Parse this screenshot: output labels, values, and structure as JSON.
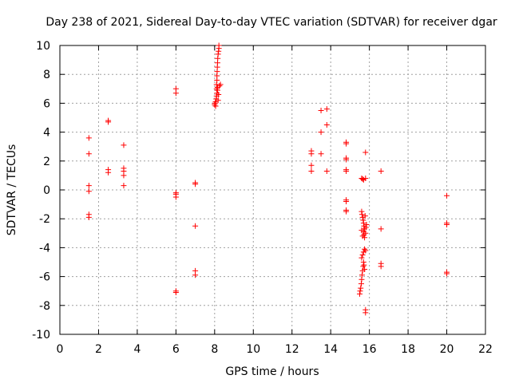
{
  "chart_data": {
    "type": "scatter",
    "title": "Day 238 of 2021, Sidereal Day-to-day VTEC variation (SDTVAR) for receiver dgar",
    "xlabel": "GPS time / hours",
    "ylabel": "SDTVAR / TECUs",
    "xlim": [
      0,
      22
    ],
    "ylim": [
      -10,
      10
    ],
    "xticks": [
      0,
      2,
      4,
      6,
      8,
      10,
      12,
      14,
      16,
      18,
      20,
      22
    ],
    "yticks": [
      -10,
      -8,
      -6,
      -4,
      -2,
      0,
      2,
      4,
      6,
      8,
      10
    ],
    "grid": true,
    "marker": "+",
    "color": "#ff0000",
    "series": [
      {
        "name": "SDTVAR",
        "points": [
          [
            1.5,
            3.6
          ],
          [
            1.5,
            2.5
          ],
          [
            1.5,
            0.3
          ],
          [
            1.5,
            -0.1
          ],
          [
            1.5,
            -1.7
          ],
          [
            1.5,
            -1.9
          ],
          [
            2.5,
            4.8
          ],
          [
            2.5,
            4.7
          ],
          [
            2.5,
            1.4
          ],
          [
            2.5,
            1.2
          ],
          [
            3.3,
            3.1
          ],
          [
            3.3,
            1.5
          ],
          [
            3.3,
            1.3
          ],
          [
            3.3,
            1.0
          ],
          [
            3.3,
            0.3
          ],
          [
            6.0,
            7.0
          ],
          [
            6.0,
            6.7
          ],
          [
            6.0,
            -0.2
          ],
          [
            6.0,
            -0.3
          ],
          [
            6.0,
            -0.5
          ],
          [
            6.0,
            -7.0
          ],
          [
            6.0,
            -7.1
          ],
          [
            7.0,
            0.5
          ],
          [
            7.0,
            0.4
          ],
          [
            7.0,
            -2.5
          ],
          [
            7.0,
            -5.6
          ],
          [
            7.0,
            -5.9
          ],
          [
            8.0,
            5.9
          ],
          [
            8.02,
            6.0
          ],
          [
            8.05,
            6.1
          ],
          [
            8.08,
            6.3
          ],
          [
            8.1,
            6.5
          ],
          [
            8.12,
            6.7
          ],
          [
            8.15,
            6.9
          ],
          [
            8.1,
            7.0
          ],
          [
            8.1,
            7.3
          ],
          [
            8.12,
            7.6
          ],
          [
            8.12,
            7.9
          ],
          [
            8.13,
            8.2
          ],
          [
            8.14,
            8.5
          ],
          [
            8.15,
            8.8
          ],
          [
            8.16,
            9.1
          ],
          [
            8.18,
            9.4
          ],
          [
            8.2,
            9.6
          ],
          [
            8.22,
            9.8
          ],
          [
            8.22,
            10.0
          ],
          [
            8.25,
            7.2
          ],
          [
            8.3,
            7.3
          ],
          [
            8.18,
            6.2
          ],
          [
            8.2,
            6.6
          ],
          [
            8.05,
            5.8
          ],
          [
            8.15,
            7.1
          ],
          [
            13.0,
            2.7
          ],
          [
            13.0,
            2.5
          ],
          [
            13.0,
            1.7
          ],
          [
            13.0,
            1.3
          ],
          [
            13.5,
            5.5
          ],
          [
            13.5,
            4.0
          ],
          [
            13.5,
            2.5
          ],
          [
            13.8,
            5.6
          ],
          [
            13.8,
            4.5
          ],
          [
            13.8,
            1.3
          ],
          [
            14.8,
            3.3
          ],
          [
            14.8,
            3.2
          ],
          [
            14.8,
            2.2
          ],
          [
            14.8,
            2.1
          ],
          [
            14.8,
            1.4
          ],
          [
            14.8,
            1.3
          ],
          [
            14.8,
            -0.7
          ],
          [
            14.8,
            -0.8
          ],
          [
            14.8,
            -1.4
          ],
          [
            14.8,
            -1.5
          ],
          [
            15.6,
            0.8
          ],
          [
            15.7,
            0.7
          ],
          [
            15.8,
            0.8
          ],
          [
            15.65,
            0.75
          ],
          [
            15.8,
            2.6
          ],
          [
            15.6,
            -1.5
          ],
          [
            15.62,
            -1.7
          ],
          [
            15.65,
            -1.9
          ],
          [
            15.68,
            -2.1
          ],
          [
            15.7,
            -2.3
          ],
          [
            15.72,
            -2.5
          ],
          [
            15.75,
            -2.7
          ],
          [
            15.7,
            -2.9
          ],
          [
            15.72,
            -3.1
          ],
          [
            15.75,
            -3.3
          ],
          [
            15.8,
            -3.0
          ],
          [
            15.82,
            -2.6
          ],
          [
            15.6,
            -2.8
          ],
          [
            15.65,
            -3.2
          ],
          [
            15.78,
            -1.8
          ],
          [
            15.85,
            -2.4
          ],
          [
            15.6,
            -4.7
          ],
          [
            15.65,
            -4.5
          ],
          [
            15.7,
            -4.3
          ],
          [
            15.75,
            -4.1
          ],
          [
            15.8,
            -4.2
          ],
          [
            15.7,
            -5.0
          ],
          [
            15.68,
            -5.3
          ],
          [
            15.65,
            -5.6
          ],
          [
            15.62,
            -5.9
          ],
          [
            15.6,
            -6.2
          ],
          [
            15.58,
            -6.5
          ],
          [
            15.55,
            -6.8
          ],
          [
            15.52,
            -7.0
          ],
          [
            15.5,
            -7.2
          ],
          [
            15.72,
            -5.2
          ],
          [
            15.75,
            -5.5
          ],
          [
            15.8,
            -8.3
          ],
          [
            15.8,
            -8.5
          ],
          [
            16.6,
            1.3
          ],
          [
            16.6,
            -2.7
          ],
          [
            16.6,
            -5.1
          ],
          [
            16.6,
            -5.3
          ],
          [
            20.0,
            -0.4
          ],
          [
            20.0,
            -2.3
          ],
          [
            20.0,
            -2.4
          ],
          [
            20.0,
            -5.7
          ],
          [
            20.0,
            -5.8
          ]
        ]
      }
    ]
  }
}
